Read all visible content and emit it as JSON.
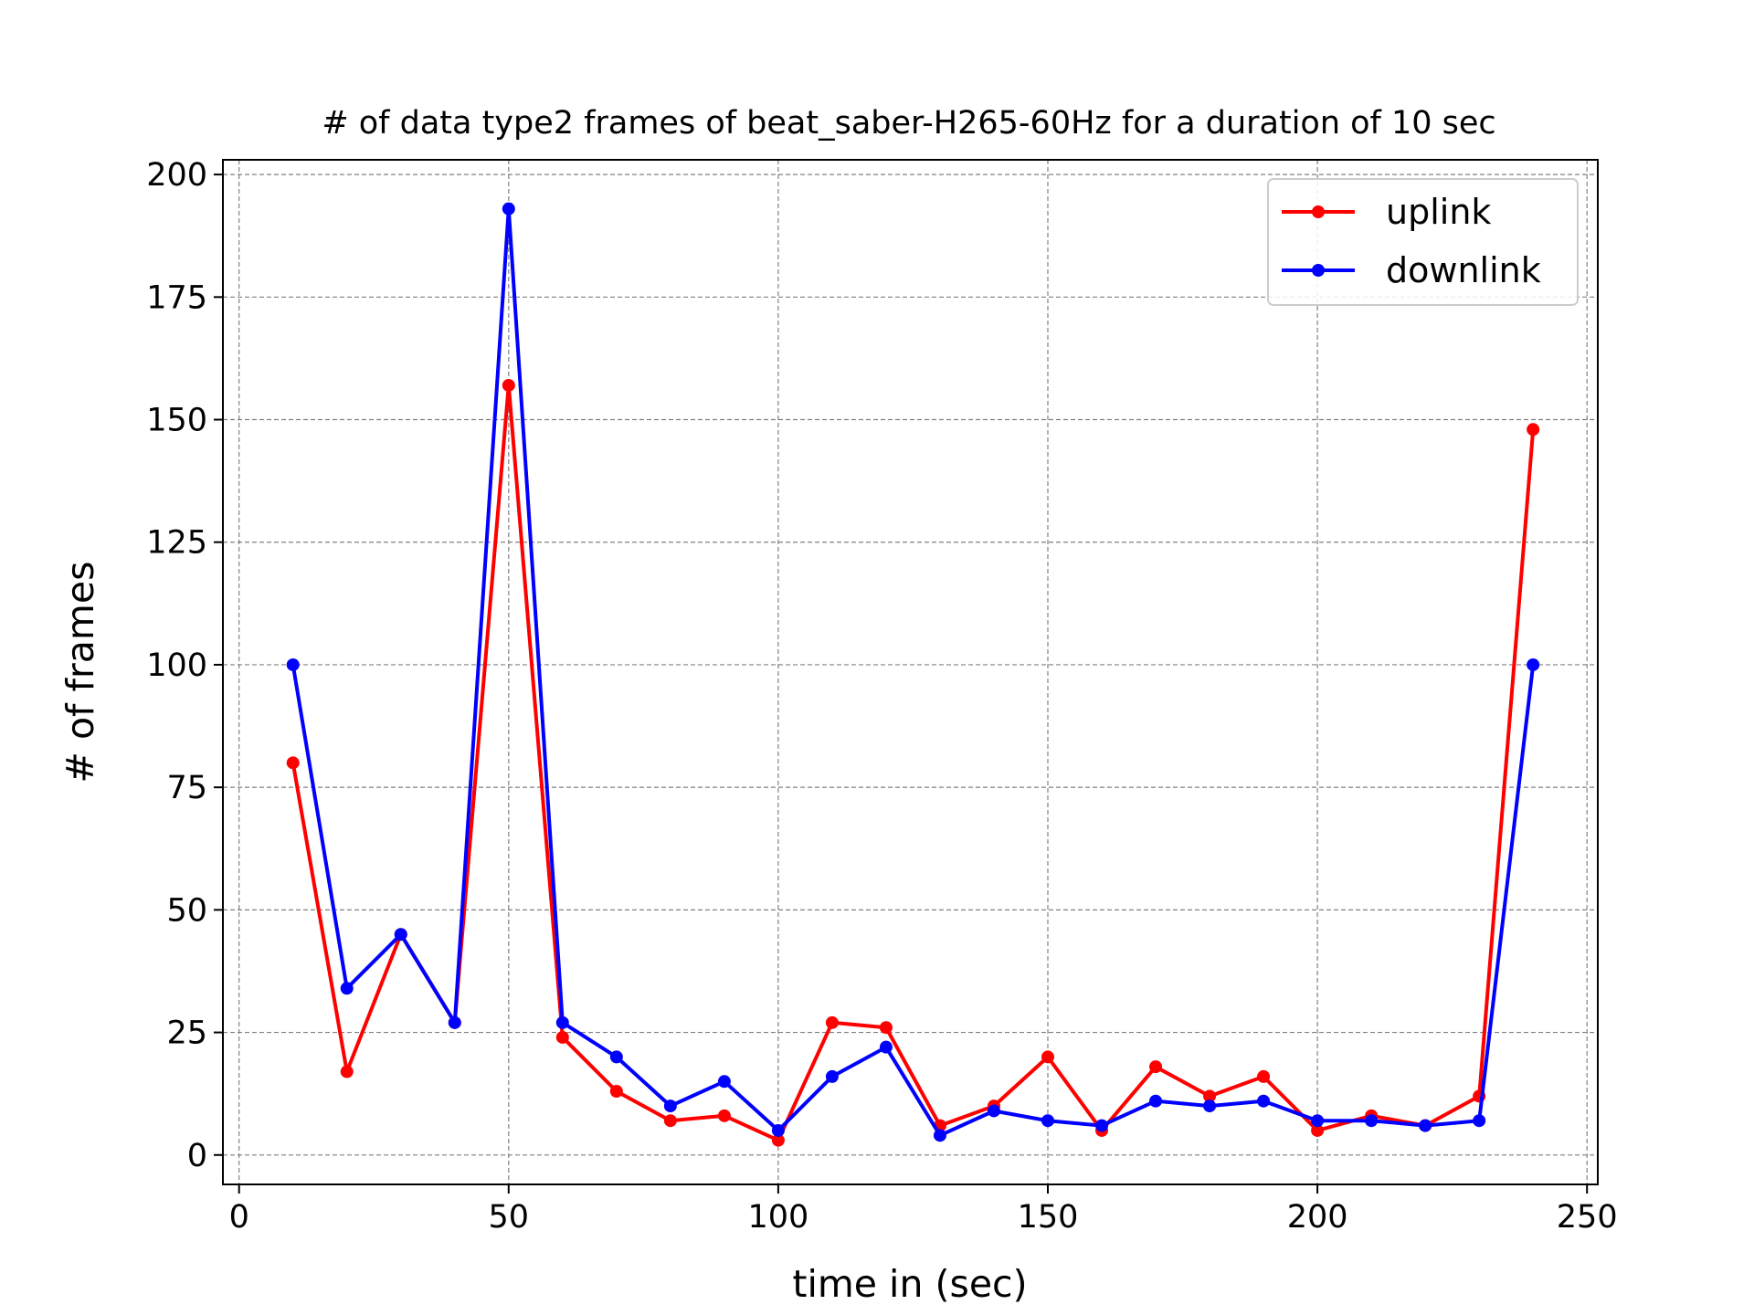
{
  "chart_data": {
    "type": "line",
    "title": "# of data type2 frames of beat_saber-H265-60Hz for a duration of 10 sec",
    "xlabel": "time in (sec)",
    "ylabel": "# of frames",
    "xlim": [
      -3,
      252
    ],
    "ylim": [
      -6,
      203
    ],
    "xticks": [
      0,
      50,
      100,
      150,
      200,
      250
    ],
    "yticks": [
      0,
      25,
      50,
      75,
      100,
      125,
      150,
      175,
      200
    ],
    "grid": true,
    "legend_position": "top-right",
    "x": [
      10,
      20,
      30,
      40,
      50,
      60,
      70,
      80,
      90,
      100,
      110,
      120,
      130,
      140,
      150,
      160,
      170,
      180,
      190,
      200,
      210,
      220,
      230,
      240
    ],
    "series": [
      {
        "name": "uplink",
        "color": "#ff0000",
        "values": [
          80,
          17,
          45,
          27,
          157,
          24,
          13,
          7,
          8,
          3,
          27,
          26,
          6,
          10,
          20,
          5,
          18,
          12,
          16,
          5,
          8,
          6,
          12,
          148
        ]
      },
      {
        "name": "downlink",
        "color": "#0000ff",
        "values": [
          100,
          34,
          45,
          27,
          193,
          27,
          20,
          10,
          15,
          5,
          16,
          22,
          4,
          9,
          7,
          6,
          11,
          10,
          11,
          7,
          7,
          6,
          7,
          100
        ]
      }
    ]
  }
}
